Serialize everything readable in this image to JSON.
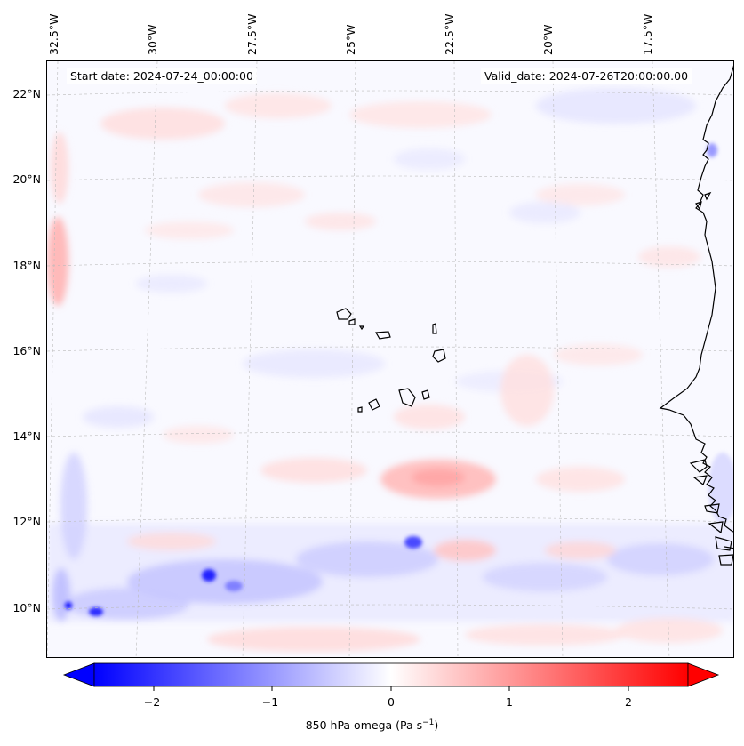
{
  "header": {
    "start_date": "Start date: 2024-07-24_00:00:00",
    "valid_date": "Valid_date: 2024-07-26T20:00:00.00"
  },
  "map": {
    "longitude_labels": [
      "32.5°W",
      "30°W",
      "27.5°W",
      "25°W",
      "22.5°W",
      "20°W",
      "17.5°W"
    ],
    "latitude_labels": [
      "22°N",
      "20°N",
      "18°N",
      "16°N",
      "14°N",
      "12°N",
      "10°N"
    ],
    "colormap": "bwr",
    "coastline_color": "#000000"
  },
  "colorbar": {
    "title": "850 hPa omega (Pa s",
    "title_exponent": "−1",
    "title_suffix": ")",
    "ticks": [
      "−2",
      "−1",
      "0",
      "1",
      "2"
    ],
    "min_color": "#0000ff",
    "mid_color": "#ffffff",
    "max_color": "#ff0000"
  }
}
